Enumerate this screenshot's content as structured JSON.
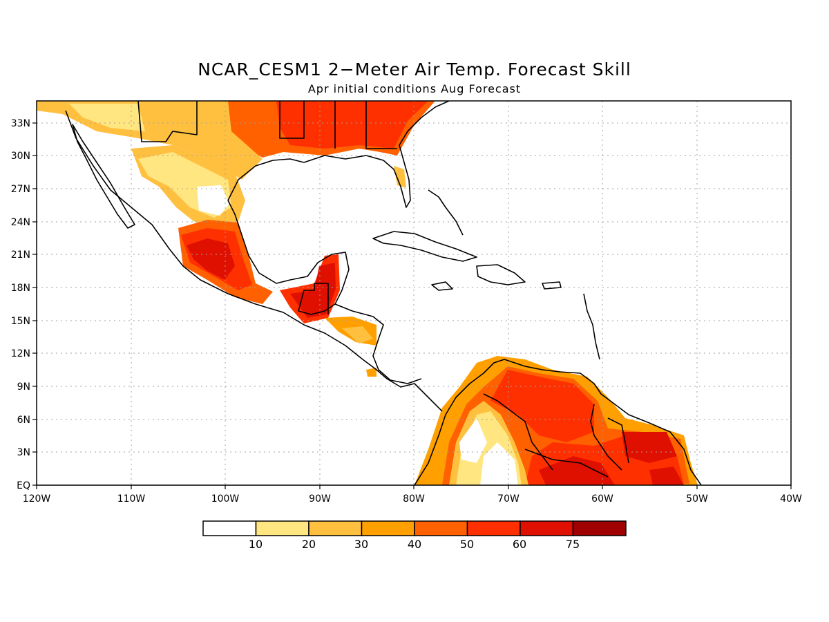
{
  "title": "NCAR_CESM1 2−Meter Air Temp. Forecast Skill",
  "subtitle": "Apr initial conditions  Aug Forecast",
  "map": {
    "region": "Central America, Gulf of Mexico and Caribbean",
    "lon_range": [
      -120,
      -40
    ],
    "lat_range": [
      0,
      35
    ],
    "lon_labels": [
      "120W",
      "110W",
      "100W",
      "90W",
      "80W",
      "70W",
      "60W",
      "50W",
      "40W"
    ],
    "lat_labels": [
      "EQ",
      "3N",
      "6N",
      "9N",
      "12N",
      "15N",
      "18N",
      "21N",
      "24N",
      "27N",
      "30N",
      "33N"
    ],
    "grid": "dotted"
  },
  "colorbar": {
    "labels": [
      "10",
      "20",
      "30",
      "40",
      "50",
      "60",
      "75"
    ],
    "colors": [
      "#ffffff",
      "#ffe680",
      "#ffc040",
      "#ffa000",
      "#ff6000",
      "#ff3000",
      "#e01000",
      "#a00000"
    ]
  },
  "chart_data": {
    "type": "heatmap",
    "variable": "2-Meter Air Temperature forecast skill",
    "bins": [
      {
        "range": "<10",
        "color": "#ffffff"
      },
      {
        "range": "10-20",
        "color": "#ffe680"
      },
      {
        "range": "20-30",
        "color": "#ffc040"
      },
      {
        "range": "30-40",
        "color": "#ffa000"
      },
      {
        "range": "40-50",
        "color": "#ff6000"
      },
      {
        "range": "50-60",
        "color": "#ff3000"
      },
      {
        "range": "60-75",
        "color": "#e01000"
      },
      {
        "range": ">75",
        "color": "#a00000"
      }
    ],
    "regions": [
      {
        "area": "Southeastern United States",
        "lon": [
          -104,
          -79
        ],
        "lat": [
          30,
          35
        ],
        "bin": "50-60"
      },
      {
        "area": "Northern Mexico plateau",
        "lon": [
          -110,
          -97
        ],
        "lat": [
          24,
          32
        ],
        "bin": "20-30"
      },
      {
        "area": "Central & southern Mexico",
        "lon": [
          -105,
          -95
        ],
        "lat": [
          16,
          23
        ],
        "bin": "50-60"
      },
      {
        "area": "Yucatan & Guatemala",
        "lon": [
          -92,
          -88
        ],
        "lat": [
          14,
          21
        ],
        "bin": "60-75"
      },
      {
        "area": "Honduras & Nicaragua",
        "lon": [
          -89,
          -83
        ],
        "lat": [
          12,
          15
        ],
        "bin": "30-40"
      },
      {
        "area": "Colombia",
        "lon": [
          -78,
          -72
        ],
        "lat": [
          0,
          11
        ],
        "bin": "30-40"
      },
      {
        "area": "Venezuela",
        "lon": [
          -72,
          -60
        ],
        "lat": [
          3,
          11
        ],
        "bin": "50-60"
      },
      {
        "area": "Guiana Highlands & northern Brazil",
        "lon": [
          -70,
          -50
        ],
        "lat": [
          0,
          6
        ],
        "bin": "60-75"
      }
    ]
  }
}
